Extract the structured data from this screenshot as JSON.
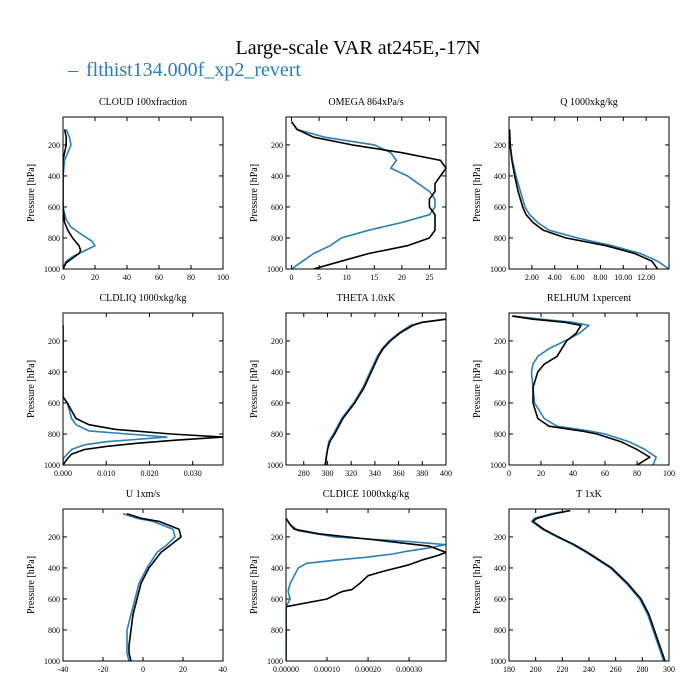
{
  "figure": {
    "title": "Large-scale VAR at245E,-17N",
    "legend_label": "flthist134.000f_xp2_revert",
    "legend_color": "#2a7fb8",
    "legend_dash": "–",
    "black_series_color": "#000000"
  },
  "chart_data": [
    {
      "type": "line",
      "title": "CLOUD  100xfraction",
      "ylabel": "Pressure [hPa]",
      "xlim": [
        0,
        100
      ],
      "ylim": [
        1000,
        20
      ],
      "y_inverted": true,
      "xticks": [
        0,
        20,
        40,
        60,
        80,
        100
      ],
      "xtick_labels": [
        "0",
        "20",
        "40",
        "60",
        "80",
        "100"
      ],
      "yticks": [
        200,
        400,
        600,
        800,
        1000
      ],
      "ytick_labels": [
        "200",
        "400",
        "600",
        "800",
        "1000"
      ],
      "series": [
        {
          "color": "#2a7fb8",
          "y": [
            100,
            150,
            200,
            250,
            300,
            400,
            500,
            600,
            680,
            730,
            780,
            820,
            850,
            880,
            920,
            950,
            970,
            1000
          ],
          "x": [
            2,
            4,
            5,
            3,
            1,
            0,
            0,
            0,
            2,
            5,
            12,
            18,
            20,
            14,
            6,
            2,
            1,
            0
          ]
        },
        {
          "color": "#000000",
          "y": [
            100,
            150,
            200,
            250,
            300,
            400,
            500,
            600,
            700,
            750,
            800,
            850,
            880,
            900,
            930,
            960,
            980,
            1000
          ],
          "x": [
            1,
            2,
            2,
            1,
            0,
            0,
            0,
            0,
            1,
            3,
            6,
            10,
            11,
            10,
            6,
            2,
            1,
            0
          ]
        }
      ]
    },
    {
      "type": "line",
      "title": "OMEGA  864xPa/s",
      "ylabel": "Pressure [hPa]",
      "xlim": [
        -1,
        28
      ],
      "ylim": [
        1000,
        20
      ],
      "y_inverted": true,
      "xticks": [
        0,
        5,
        10,
        15,
        20,
        25
      ],
      "xtick_labels": [
        "0",
        "5",
        "10",
        "15",
        "20",
        "25"
      ],
      "yticks": [
        200,
        400,
        600,
        800,
        1000
      ],
      "ytick_labels": [
        "200",
        "400",
        "600",
        "800",
        "1000"
      ],
      "series": [
        {
          "color": "#2a7fb8",
          "y": [
            50,
            100,
            150,
            200,
            250,
            300,
            350,
            400,
            450,
            500,
            550,
            600,
            650,
            700,
            750,
            800,
            850,
            900,
            950,
            1000
          ],
          "x": [
            0,
            1,
            6,
            15,
            18,
            19,
            18,
            21,
            23,
            25,
            26,
            26,
            25,
            20,
            14,
            9,
            7,
            4,
            2,
            0
          ]
        },
        {
          "color": "#000000",
          "y": [
            50,
            100,
            150,
            200,
            250,
            300,
            350,
            400,
            450,
            500,
            550,
            600,
            650,
            700,
            750,
            800,
            850,
            900,
            950,
            1000
          ],
          "x": [
            0,
            1,
            4,
            11,
            20,
            27,
            28,
            27,
            26,
            26,
            25,
            25,
            26,
            26,
            26,
            25,
            21,
            14,
            9,
            4
          ]
        }
      ]
    },
    {
      "type": "line",
      "title": "Q  1000xkg/kg",
      "ylabel": "Pressure [hPa]",
      "xlim": [
        0,
        14
      ],
      "ylim": [
        1000,
        20
      ],
      "y_inverted": true,
      "xticks": [
        2,
        4,
        6,
        8,
        10,
        12
      ],
      "xtick_labels": [
        "2.00",
        "4.00",
        "6.00",
        "8.00",
        "10.00",
        "12.00"
      ],
      "yticks": [
        200,
        400,
        600,
        800,
        1000
      ],
      "ytick_labels": [
        "200",
        "400",
        "600",
        "800",
        "1000"
      ],
      "series": [
        {
          "color": "#2a7fb8",
          "y": [
            100,
            200,
            300,
            400,
            500,
            600,
            650,
            700,
            750,
            800,
            850,
            900,
            950,
            1000
          ],
          "x": [
            0.05,
            0.1,
            0.3,
            0.6,
            1.0,
            1.4,
            1.8,
            2.5,
            3.5,
            6,
            9,
            11.5,
            13,
            14
          ]
        },
        {
          "color": "#000000",
          "y": [
            100,
            200,
            300,
            400,
            500,
            600,
            650,
            700,
            750,
            800,
            850,
            900,
            950,
            1000
          ],
          "x": [
            0.05,
            0.1,
            0.25,
            0.5,
            0.8,
            1.2,
            1.5,
            2.1,
            3.0,
            5,
            8.5,
            11,
            12.5,
            13
          ]
        }
      ]
    },
    {
      "type": "line",
      "title": "CLDLIQ  1000xkg/kg",
      "ylabel": "Pressure [hPa]",
      "xlim": [
        0,
        0.037
      ],
      "ylim": [
        1000,
        20
      ],
      "y_inverted": true,
      "xticks": [
        0,
        0.01,
        0.02,
        0.03
      ],
      "xtick_labels": [
        "0.000",
        "0.010",
        "0.020",
        "0.030"
      ],
      "yticks": [
        200,
        400,
        600,
        800,
        1000
      ],
      "ytick_labels": [
        "200",
        "400",
        "600",
        "800",
        "1000"
      ],
      "series": [
        {
          "color": "#2a7fb8",
          "y": [
            100,
            200,
            400,
            560,
            600,
            650,
            700,
            740,
            780,
            800,
            820,
            850,
            870,
            900,
            930,
            960,
            1000
          ],
          "x": [
            0,
            0,
            0,
            0,
            0.001,
            0.0015,
            0.002,
            0.003,
            0.006,
            0.015,
            0.024,
            0.01,
            0.005,
            0.002,
            0.001,
            0,
            0
          ]
        },
        {
          "color": "#000000",
          "y": [
            100,
            200,
            400,
            560,
            600,
            650,
            700,
            740,
            770,
            800,
            820,
            840,
            860,
            880,
            900,
            930,
            960,
            1000
          ],
          "x": [
            0,
            0,
            0,
            0,
            0.001,
            0.002,
            0.003,
            0.006,
            0.012,
            0.025,
            0.037,
            0.026,
            0.017,
            0.01,
            0.005,
            0.002,
            0.001,
            0
          ]
        }
      ]
    },
    {
      "type": "line",
      "title": "THETA  1.0xK",
      "ylabel": "Pressure [hPa]",
      "xlim": [
        265,
        400
      ],
      "ylim": [
        1000,
        20
      ],
      "y_inverted": true,
      "xticks": [
        280,
        300,
        320,
        340,
        360,
        380,
        400
      ],
      "xtick_labels": [
        "280",
        "300",
        "320",
        "340",
        "360",
        "380",
        "400"
      ],
      "yticks": [
        200,
        400,
        600,
        800,
        1000
      ],
      "ytick_labels": [
        "200",
        "400",
        "600",
        "800",
        "1000"
      ],
      "series": [
        {
          "color": "#2a7fb8",
          "y": [
            60,
            80,
            100,
            150,
            200,
            250,
            300,
            400,
            500,
            600,
            700,
            800,
            850,
            900,
            950,
            1000
          ],
          "x": [
            400,
            380,
            370,
            360,
            352,
            346,
            342,
            336,
            330,
            322,
            312,
            305,
            301,
            300,
            299,
            299
          ]
        },
        {
          "color": "#000000",
          "y": [
            60,
            80,
            100,
            150,
            200,
            250,
            300,
            400,
            500,
            600,
            700,
            800,
            850,
            900,
            950,
            1000
          ],
          "x": [
            400,
            380,
            372,
            361,
            353,
            347,
            343,
            337,
            331,
            323,
            313,
            306,
            302,
            300,
            299,
            298
          ]
        }
      ]
    },
    {
      "type": "line",
      "title": "RELHUM  1xpercent",
      "ylabel": "Pressure [hPa]",
      "xlim": [
        0,
        100
      ],
      "ylim": [
        1000,
        20
      ],
      "y_inverted": true,
      "xticks": [
        0,
        20,
        40,
        60,
        80,
        100
      ],
      "xtick_labels": [
        "0",
        "20",
        "40",
        "60",
        "80",
        "100"
      ],
      "yticks": [
        200,
        400,
        600,
        800,
        1000
      ],
      "ytick_labels": [
        "200",
        "400",
        "600",
        "800",
        "1000"
      ],
      "series": [
        {
          "color": "#2a7fb8",
          "y": [
            40,
            60,
            80,
            100,
            150,
            200,
            250,
            300,
            350,
            400,
            500,
            600,
            700,
            750,
            780,
            800,
            850,
            900,
            950,
            1000
          ],
          "x": [
            3,
            20,
            40,
            50,
            44,
            35,
            25,
            18,
            15,
            14,
            15,
            16,
            22,
            30,
            50,
            60,
            75,
            85,
            92,
            90
          ]
        },
        {
          "color": "#000000",
          "y": [
            40,
            60,
            80,
            100,
            150,
            200,
            250,
            300,
            350,
            400,
            500,
            600,
            700,
            750,
            780,
            800,
            850,
            900,
            950,
            1000
          ],
          "x": [
            2,
            15,
            35,
            45,
            42,
            36,
            33,
            30,
            22,
            18,
            15,
            15,
            18,
            25,
            45,
            55,
            70,
            80,
            88,
            80
          ]
        }
      ]
    },
    {
      "type": "line",
      "title": "U  1xm/s",
      "ylabel": "Pressure [hPa]",
      "xlim": [
        -40,
        40
      ],
      "ylim": [
        1000,
        20
      ],
      "y_inverted": true,
      "xticks": [
        -40,
        -20,
        0,
        20,
        40
      ],
      "xtick_labels": [
        "-40",
        "-20",
        "0",
        "20",
        "40"
      ],
      "yticks": [
        200,
        400,
        600,
        800,
        1000
      ],
      "ytick_labels": [
        "200",
        "400",
        "600",
        "800",
        "1000"
      ],
      "series": [
        {
          "color": "#2a7fb8",
          "y": [
            50,
            80,
            100,
            150,
            200,
            250,
            300,
            400,
            500,
            600,
            700,
            800,
            900,
            950,
            1000
          ],
          "x": [
            -10,
            -3,
            5,
            15,
            16,
            12,
            7,
            2,
            -2,
            -4,
            -6,
            -8,
            -8,
            -8,
            -7
          ]
        },
        {
          "color": "#000000",
          "y": [
            50,
            80,
            100,
            150,
            200,
            250,
            300,
            400,
            500,
            600,
            700,
            800,
            900,
            950,
            1000
          ],
          "x": [
            -8,
            -1,
            8,
            18,
            19,
            14,
            9,
            3,
            -1,
            -3,
            -5,
            -6,
            -7,
            -7,
            -6
          ]
        }
      ]
    },
    {
      "type": "line",
      "title": "CLDICE  1000xkg/kg",
      "ylabel": "Pressure [hPa]",
      "xlim": [
        0,
        0.00039
      ],
      "ylim": [
        1000,
        20
      ],
      "y_inverted": true,
      "xticks": [
        0,
        0.0001,
        0.0002,
        0.0003
      ],
      "xtick_labels": [
        "0.00000",
        "0.00010",
        "0.00020",
        "0.00030"
      ],
      "yticks": [
        200,
        400,
        600,
        800,
        1000
      ],
      "ytick_labels": [
        "200",
        "400",
        "600",
        "800",
        "1000"
      ],
      "series": [
        {
          "color": "#2a7fb8",
          "y": [
            80,
            120,
            160,
            200,
            230,
            250,
            270,
            290,
            300,
            310,
            330,
            350,
            370,
            400,
            450,
            500,
            550,
            600,
            650,
            1000
          ],
          "x": [
            0,
            1e-05,
            3e-05,
            0.00012,
            0.0003,
            0.00039,
            0.00035,
            0.0003,
            0.00028,
            0.00026,
            0.0002,
            0.00012,
            5e-05,
            3e-05,
            2e-05,
            1e-05,
            5e-06,
            1e-05,
            0,
            0
          ]
        },
        {
          "color": "#000000",
          "y": [
            80,
            120,
            150,
            180,
            220,
            260,
            300,
            320,
            350,
            380,
            420,
            450,
            500,
            540,
            550,
            560,
            600,
            650,
            1000
          ],
          "x": [
            0,
            1e-05,
            2e-05,
            8e-05,
            0.00022,
            0.00035,
            0.00039,
            0.00037,
            0.00033,
            0.0003,
            0.00024,
            0.0002,
            0.00018,
            0.00016,
            0.00014,
            0.00013,
            0.0001,
            0,
            0
          ]
        }
      ]
    },
    {
      "type": "line",
      "title": "T  1xK",
      "ylabel": "Pressure [hPa]",
      "xlim": [
        180,
        300
      ],
      "ylim": [
        1000,
        20
      ],
      "y_inverted": true,
      "xticks": [
        180,
        200,
        220,
        240,
        260,
        280,
        300
      ],
      "xtick_labels": [
        "180",
        "200",
        "220",
        "240",
        "260",
        "280",
        "300"
      ],
      "yticks": [
        200,
        400,
        600,
        800,
        1000
      ],
      "ytick_labels": [
        "200",
        "400",
        "600",
        "800",
        "1000"
      ],
      "series": [
        {
          "color": "#2a7fb8",
          "y": [
            30,
            50,
            80,
            100,
            150,
            200,
            250,
            300,
            400,
            500,
            600,
            700,
            800,
            900,
            1000
          ],
          "x": [
            225,
            212,
            199,
            197,
            205,
            216,
            228,
            238,
            256,
            268,
            278,
            284,
            288,
            292,
            296
          ]
        },
        {
          "color": "#000000",
          "y": [
            30,
            50,
            80,
            100,
            150,
            200,
            250,
            300,
            400,
            500,
            600,
            700,
            800,
            900,
            1000
          ],
          "x": [
            226,
            214,
            201,
            198,
            206,
            217,
            229,
            239,
            257,
            269,
            279,
            285,
            289,
            293,
            297
          ]
        }
      ]
    }
  ]
}
